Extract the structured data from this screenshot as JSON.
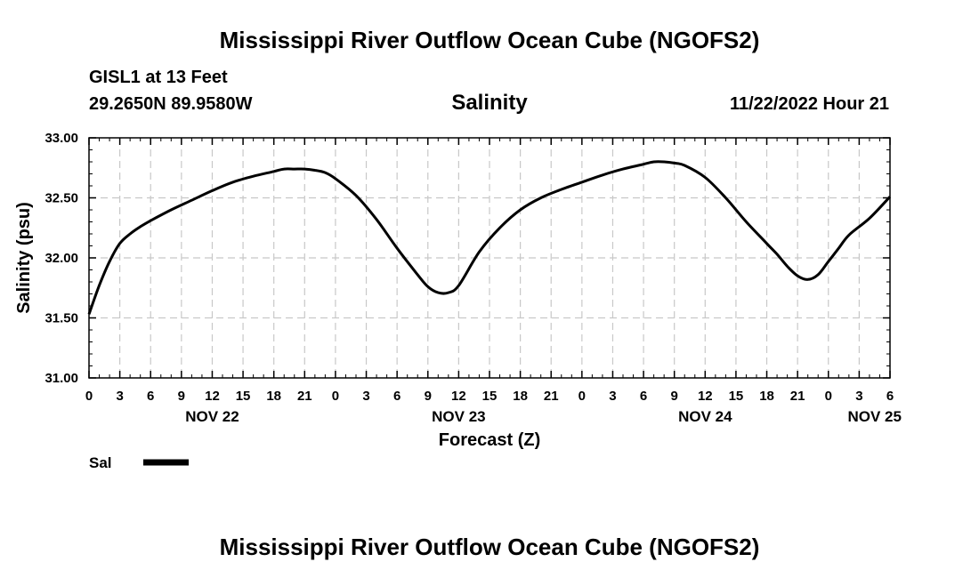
{
  "header": {
    "title": "Mississippi River Outflow Ocean Cube (NGOFS2)",
    "station": "GISL1 at 13 Feet",
    "coords": "29.2650N  89.9580W",
    "variable": "Salinity",
    "datetime": "11/22/2022 Hour 21"
  },
  "footer": {
    "title": "Mississippi River Outflow Ocean Cube (NGOFS2)"
  },
  "chart_data": {
    "type": "line",
    "title": "Salinity",
    "xlabel": "Forecast (Z)",
    "ylabel": "Salinity (psu)",
    "ylim": [
      31.0,
      33.0
    ],
    "yticks": [
      "31.00",
      "31.50",
      "32.00",
      "32.50",
      "33.00"
    ],
    "xlim": [
      0,
      78
    ],
    "xtick_hours": [
      0,
      3,
      6,
      9,
      12,
      15,
      18,
      21,
      24,
      27,
      30,
      33,
      36,
      39,
      42,
      45,
      48,
      51,
      54,
      57,
      60,
      63,
      66,
      69,
      72,
      75,
      78
    ],
    "xtick_labels": [
      "0",
      "3",
      "6",
      "9",
      "12",
      "15",
      "18",
      "21",
      "0",
      "3",
      "6",
      "9",
      "12",
      "15",
      "18",
      "21",
      "0",
      "3",
      "6",
      "9",
      "12",
      "15",
      "18",
      "21",
      "0",
      "3",
      "6"
    ],
    "day_labels": [
      {
        "hour": 12,
        "label": "NOV 22"
      },
      {
        "hour": 36,
        "label": "NOV 23"
      },
      {
        "hour": 60,
        "label": "NOV 24"
      },
      {
        "hour": 76.5,
        "label": "NOV 25"
      }
    ],
    "grid": true,
    "legend": {
      "placement": "bottom-left",
      "entries": [
        {
          "label": "Sal"
        }
      ]
    },
    "series": [
      {
        "name": "Sal",
        "x": [
          0,
          1,
          2,
          3,
          4,
          5,
          6,
          8,
          10,
          12,
          14,
          16,
          18,
          19,
          20,
          21,
          22,
          23,
          24,
          26,
          28,
          30,
          32,
          33,
          34,
          35,
          36,
          38,
          40,
          42,
          44,
          46,
          48,
          50,
          52,
          54,
          55,
          56,
          57,
          58,
          60,
          62,
          64,
          66,
          67,
          68,
          69,
          70,
          71,
          72,
          73,
          74,
          76,
          78
        ],
        "values": [
          31.53,
          31.77,
          31.97,
          32.12,
          32.2,
          32.26,
          32.31,
          32.4,
          32.48,
          32.56,
          32.63,
          32.68,
          32.72,
          32.74,
          32.74,
          32.74,
          32.73,
          32.71,
          32.66,
          32.52,
          32.32,
          32.08,
          31.86,
          31.76,
          31.71,
          31.71,
          31.77,
          32.05,
          32.25,
          32.4,
          32.5,
          32.57,
          32.63,
          32.69,
          32.74,
          32.78,
          32.8,
          32.8,
          32.79,
          32.77,
          32.67,
          32.5,
          32.3,
          32.12,
          32.03,
          31.93,
          31.85,
          31.82,
          31.86,
          31.97,
          32.08,
          32.19,
          32.33,
          32.51
        ]
      }
    ]
  }
}
